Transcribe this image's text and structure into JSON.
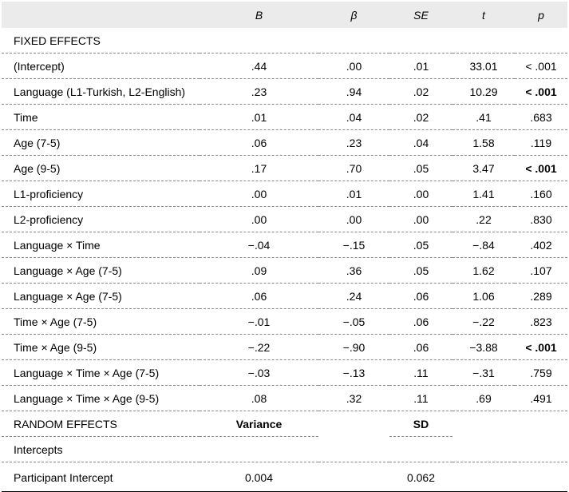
{
  "header": [
    "",
    "B",
    "β",
    "SE",
    "t",
    "p"
  ],
  "fixed_label": "FIXED EFFECTS",
  "rows": [
    {
      "term": "(Intercept)",
      "B": ".44",
      "beta": ".00",
      "SE": ".01",
      "t": "33.01",
      "p": "< .001",
      "sig": false
    },
    {
      "term": "Language (L1-Turkish, L2-English)",
      "B": ".23",
      "beta": ".94",
      "SE": ".02",
      "t": "10.29",
      "p": "< .001",
      "sig": true
    },
    {
      "term": "Time",
      "B": ".01",
      "beta": ".04",
      "SE": ".02",
      "t": ".41",
      "p": ".683",
      "sig": false
    },
    {
      "term": "Age (7-5)",
      "B": ".06",
      "beta": ".23",
      "SE": ".04",
      "t": "1.58",
      "p": ".119",
      "sig": false
    },
    {
      "term": "Age (9-5)",
      "B": ".17",
      "beta": ".70",
      "SE": ".05",
      "t": "3.47",
      "p": "< .001",
      "sig": true
    },
    {
      "term": "L1-proficiency",
      "B": ".00",
      "beta": ".01",
      "SE": ".00",
      "t": "1.41",
      "p": ".160",
      "sig": false
    },
    {
      "term": "L2-proficiency",
      "B": ".00",
      "beta": ".00",
      "SE": ".00",
      "t": ".22",
      "p": ".830",
      "sig": false
    },
    {
      "term": "Language × Time",
      "B": "−.04",
      "beta": "−.15",
      "SE": ".05",
      "t": "−.84",
      "p": ".402",
      "sig": false
    },
    {
      "term": "Language × Age (7-5)",
      "B": ".09",
      "beta": ".36",
      "SE": ".05",
      "t": "1.62",
      "p": ".107",
      "sig": false
    },
    {
      "term": "Language × Age (7-5)",
      "B": ".06",
      "beta": ".24",
      "SE": ".06",
      "t": "1.06",
      "p": ".289",
      "sig": false
    },
    {
      "term": "Time × Age (7-5)",
      "B": "−.01",
      "beta": "−.05",
      "SE": ".06",
      "t": "−.22",
      "p": ".823",
      "sig": false
    },
    {
      "term": "Time × Age (9-5)",
      "B": "−.22",
      "beta": "−.90",
      "SE": ".06",
      "t": "−3.88",
      "p": "< .001",
      "sig": true
    },
    {
      "term": "Language × Time × Age (7-5)",
      "B": "−.03",
      "beta": "−.13",
      "SE": ".11",
      "t": "−.31",
      "p": ".759",
      "sig": false
    },
    {
      "term": "Language × Time × Age (9-5)",
      "B": ".08",
      "beta": ".32",
      "SE": ".11",
      "t": ".69",
      "p": ".491",
      "sig": false
    }
  ],
  "random": {
    "label": "RANDOM EFFECTS",
    "variance_label": "Variance",
    "sd_label": "SD",
    "intercepts_label": "Intercepts",
    "participant_label": "Participant Intercept",
    "variance": "0.004",
    "sd": "0.062"
  }
}
